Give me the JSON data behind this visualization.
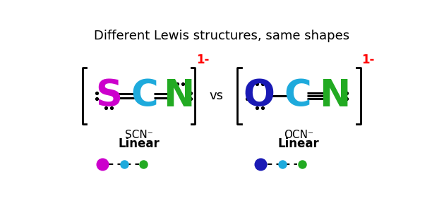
{
  "title": "Different Lewis structures, same shapes",
  "title_fontsize": 13,
  "background_color": "#ffffff",
  "scn": {
    "S_color": "#CC00CC",
    "C_color": "#1EAADC",
    "N_color": "#22AA22",
    "label": "SCN⁻",
    "shape_label": "Linear",
    "dot_colors": [
      "#CC00CC",
      "#1EAADC",
      "#22AA22"
    ]
  },
  "ocn": {
    "O_color": "#1a1ab5",
    "C_color": "#1EAADC",
    "N_color": "#22AA22",
    "label": "OCN⁻",
    "shape_label": "Linear",
    "dot_colors": [
      "#1a1ab5",
      "#1EAADC",
      "#22AA22"
    ]
  },
  "charge_color": "#ff0000",
  "charge_text": "1-",
  "vs_text": "vs"
}
